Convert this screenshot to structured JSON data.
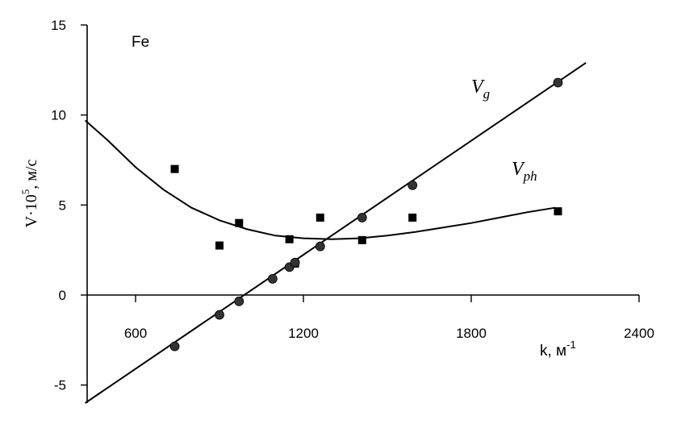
{
  "chart_data": {
    "type": "scatter",
    "annotation": "Fe",
    "ylabel": {
      "main": "V·10",
      "exp": "5",
      "unit": ", м/с"
    },
    "xlabel": {
      "main": "k, м",
      "exp": "-1"
    },
    "xlim": [
      400,
      2400
    ],
    "ylim": [
      -6,
      15
    ],
    "x_ticks": [
      600,
      1200,
      1800,
      2400
    ],
    "y_ticks": [
      -5,
      0,
      5,
      10,
      15
    ],
    "grid": false,
    "series": [
      {
        "id": "vg",
        "label_main": "V",
        "label_sub": "g",
        "marker": "circle",
        "points": [
          {
            "x": 740,
            "y": -2.85
          },
          {
            "x": 900,
            "y": -1.1
          },
          {
            "x": 970,
            "y": -0.35
          },
          {
            "x": 1090,
            "y": 0.9
          },
          {
            "x": 1150,
            "y": 1.55
          },
          {
            "x": 1170,
            "y": 1.8
          },
          {
            "x": 1260,
            "y": 2.7
          },
          {
            "x": 1410,
            "y": 4.3
          },
          {
            "x": 1590,
            "y": 6.1
          },
          {
            "x": 2110,
            "y": 11.8
          }
        ],
        "fit_line": [
          {
            "x": 420,
            "y": -6.0
          },
          {
            "x": 2210,
            "y": 12.9
          }
        ]
      },
      {
        "id": "vph",
        "label_main": "V",
        "label_sub": "ph",
        "marker": "square",
        "points": [
          {
            "x": 740,
            "y": 7.0
          },
          {
            "x": 900,
            "y": 2.75
          },
          {
            "x": 970,
            "y": 4.0
          },
          {
            "x": 1150,
            "y": 3.1
          },
          {
            "x": 1170,
            "y": 1.75
          },
          {
            "x": 1260,
            "y": 4.3
          },
          {
            "x": 1410,
            "y": 3.05
          },
          {
            "x": 1590,
            "y": 4.3
          },
          {
            "x": 2110,
            "y": 4.65
          }
        ],
        "fit_curve": [
          {
            "x": 420,
            "y": 9.7
          },
          {
            "x": 500,
            "y": 8.6
          },
          {
            "x": 600,
            "y": 7.1
          },
          {
            "x": 700,
            "y": 5.85
          },
          {
            "x": 800,
            "y": 4.85
          },
          {
            "x": 900,
            "y": 4.15
          },
          {
            "x": 1000,
            "y": 3.65
          },
          {
            "x": 1100,
            "y": 3.3
          },
          {
            "x": 1200,
            "y": 3.15
          },
          {
            "x": 1300,
            "y": 3.1
          },
          {
            "x": 1400,
            "y": 3.15
          },
          {
            "x": 1500,
            "y": 3.3
          },
          {
            "x": 1600,
            "y": 3.5
          },
          {
            "x": 1700,
            "y": 3.75
          },
          {
            "x": 1800,
            "y": 4.0
          },
          {
            "x": 1900,
            "y": 4.3
          },
          {
            "x": 2000,
            "y": 4.6
          },
          {
            "x": 2100,
            "y": 4.85
          }
        ]
      }
    ]
  }
}
